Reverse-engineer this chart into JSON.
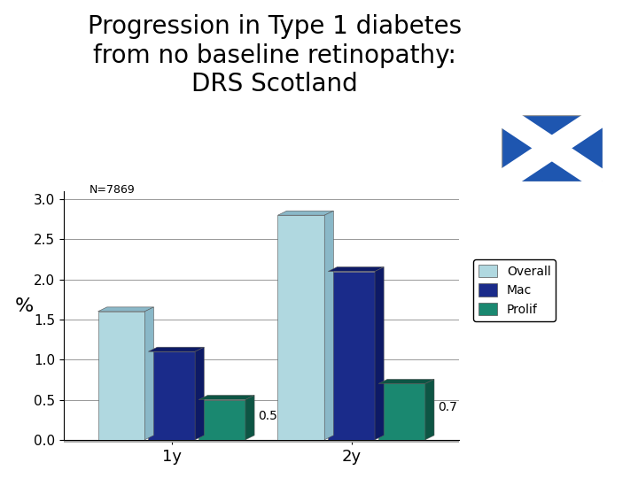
{
  "title_line1": "Progression in Type 1 diabetes",
  "title_line2": "from no baseline retinopathy:",
  "title_line3": "DRS Scotland",
  "title_fontsize": 20,
  "annotation": "N=7869",
  "ylabel": "%",
  "categories": [
    "1y",
    "2y"
  ],
  "series": {
    "Overall": [
      1.6,
      2.8
    ],
    "Mac": [
      1.1,
      2.1
    ],
    "Prolif": [
      0.5,
      0.7
    ]
  },
  "bar_colors": {
    "Overall": "#b0d8e0",
    "Mac": "#1a2b8a",
    "Prolif": "#1a8870"
  },
  "bar_top_colors": {
    "Overall": "#8ab8c8",
    "Mac": "#0d1a66",
    "Prolif": "#0d5544"
  },
  "bar_side_colors": {
    "Overall": "#8ab8c8",
    "Mac": "#0d1a66",
    "Prolif": "#0d5544"
  },
  "prolif_labels": [
    "0.5",
    "0.7"
  ],
  "ylim": [
    0,
    3.1
  ],
  "yticks": [
    0,
    0.5,
    1,
    1.5,
    2,
    2.5,
    3
  ],
  "background_color": "#ffffff",
  "bar_width": 0.13,
  "legend_labels": [
    "Overall",
    "Mac",
    "Prolif"
  ],
  "flag_blue": "#1e56b0",
  "flag_white": "#ffffff",
  "base_color": "#aaaaaa"
}
